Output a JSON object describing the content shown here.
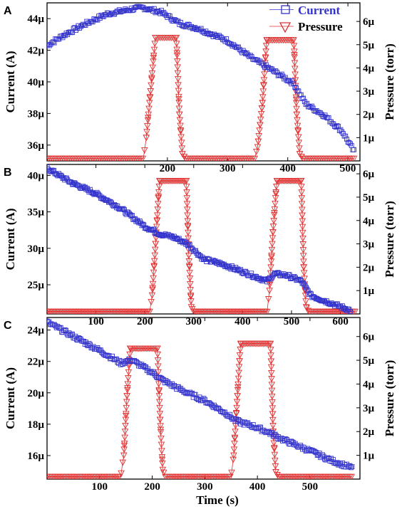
{
  "figure": {
    "x_title": "Time (s)",
    "left_title": "Current (A)",
    "right_title": "Pressure (torr)",
    "legend": [
      {
        "name": "Current",
        "color": "#3333cc",
        "marker": "square-open"
      },
      {
        "name": "Pressure",
        "color": "#e03030",
        "marker": "triangle-down-open"
      }
    ]
  },
  "chart_data": [
    {
      "type": "scatter",
      "panel_label": "A",
      "xlim": [
        0,
        520
      ],
      "ylim_left": [
        35.0,
        45.0
      ],
      "ylim_right": [
        0,
        6.8
      ],
      "x_ticks": [
        200,
        300,
        400,
        500
      ],
      "y_left_ticks": [
        36,
        38,
        40,
        42,
        44
      ],
      "y_left_labels": [
        "36µ",
        "38µ",
        "40µ",
        "42µ",
        "44µ"
      ],
      "y_right_ticks": [
        1,
        2,
        3,
        4,
        5,
        6
      ],
      "y_right_labels": [
        "1µ",
        "2µ",
        "3µ",
        "4µ",
        "5µ",
        "6µ"
      ],
      "x_hidden_tick_label": "",
      "current_series": {
        "name": "Current",
        "unit_scale": "µA",
        "points": [
          [
            0,
            42.3
          ],
          [
            30,
            43.0
          ],
          [
            60,
            43.6
          ],
          [
            100,
            44.3
          ],
          [
            140,
            44.6
          ],
          [
            160,
            44.7
          ],
          [
            190,
            44.4
          ],
          [
            220,
            43.7
          ],
          [
            250,
            43.4
          ],
          [
            300,
            42.6
          ],
          [
            340,
            41.5
          ],
          [
            380,
            40.6
          ],
          [
            410,
            39.9
          ],
          [
            430,
            38.6
          ],
          [
            460,
            37.9
          ],
          [
            490,
            36.9
          ],
          [
            510,
            35.6
          ]
        ]
      },
      "pressure_series": {
        "name": "Pressure",
        "unit_scale": "µtorr",
        "points": [
          [
            0,
            0.1
          ],
          [
            160,
            0.1
          ],
          [
            165,
            1.0
          ],
          [
            172,
            3.0
          ],
          [
            180,
            5.3
          ],
          [
            215,
            5.3
          ],
          [
            220,
            2.0
          ],
          [
            225,
            0.3
          ],
          [
            230,
            0.1
          ],
          [
            345,
            0.1
          ],
          [
            350,
            0.6
          ],
          [
            358,
            2.5
          ],
          [
            365,
            5.2
          ],
          [
            410,
            5.2
          ],
          [
            415,
            2.0
          ],
          [
            420,
            0.3
          ],
          [
            425,
            0.1
          ],
          [
            510,
            0.1
          ]
        ]
      }
    },
    {
      "type": "scatter",
      "panel_label": "B",
      "xlim": [
        0,
        640
      ],
      "ylim_left": [
        21.0,
        41.5
      ],
      "ylim_right": [
        0,
        6.4
      ],
      "x_ticks": [
        100,
        200,
        300,
        400,
        500,
        600
      ],
      "y_left_ticks": [
        25,
        30,
        35,
        40
      ],
      "y_left_labels": [
        "25µ",
        "30µ",
        "35µ",
        "40µ"
      ],
      "y_right_ticks": [
        1,
        2,
        3,
        4,
        5,
        6
      ],
      "y_right_labels": [
        "1µ",
        "2µ",
        "3µ",
        "4µ",
        "5µ",
        "6µ"
      ],
      "current_series": {
        "name": "Current",
        "unit_scale": "µA",
        "points": [
          [
            0,
            41.0
          ],
          [
            50,
            39.0
          ],
          [
            100,
            37.5
          ],
          [
            150,
            35.5
          ],
          [
            200,
            33.0
          ],
          [
            230,
            32.0
          ],
          [
            260,
            31.5
          ],
          [
            290,
            30.5
          ],
          [
            320,
            28.5
          ],
          [
            360,
            27.8
          ],
          [
            400,
            26.8
          ],
          [
            450,
            25.5
          ],
          [
            465,
            26.5
          ],
          [
            490,
            26.3
          ],
          [
            520,
            25.5
          ],
          [
            540,
            23.5
          ],
          [
            580,
            22.5
          ],
          [
            620,
            21.5
          ]
        ]
      },
      "pressure_series": {
        "name": "Pressure",
        "unit_scale": "µtorr",
        "points": [
          [
            0,
            0.1
          ],
          [
            210,
            0.1
          ],
          [
            215,
            0.8
          ],
          [
            222,
            3.0
          ],
          [
            230,
            5.7
          ],
          [
            285,
            5.7
          ],
          [
            290,
            2.5
          ],
          [
            295,
            0.3
          ],
          [
            300,
            0.1
          ],
          [
            450,
            0.1
          ],
          [
            455,
            1.0
          ],
          [
            462,
            3.5
          ],
          [
            470,
            5.7
          ],
          [
            520,
            5.7
          ],
          [
            525,
            2.0
          ],
          [
            530,
            0.3
          ],
          [
            535,
            0.1
          ],
          [
            630,
            0.1
          ]
        ]
      }
    },
    {
      "type": "scatter",
      "panel_label": "C",
      "xlim": [
        0,
        595
      ],
      "ylim_left": [
        14.5,
        24.8
      ],
      "ylim_right": [
        0,
        6.8
      ],
      "x_ticks": [
        100,
        200,
        300,
        400,
        500
      ],
      "y_left_ticks": [
        16,
        18,
        20,
        22,
        24
      ],
      "y_left_labels": [
        "16µ",
        "18µ",
        "20µ",
        "22µ",
        "24µ"
      ],
      "y_right_ticks": [
        1,
        2,
        3,
        4,
        5,
        6
      ],
      "y_right_labels": [
        "1µ",
        "2µ",
        "3µ",
        "4µ",
        "5µ",
        "6µ"
      ],
      "current_series": {
        "name": "Current",
        "unit_scale": "µA",
        "points": [
          [
            0,
            24.5
          ],
          [
            50,
            23.6
          ],
          [
            100,
            22.7
          ],
          [
            140,
            21.9
          ],
          [
            160,
            22.1
          ],
          [
            200,
            21.3
          ],
          [
            220,
            20.8
          ],
          [
            260,
            20.1
          ],
          [
            300,
            19.5
          ],
          [
            340,
            18.7
          ],
          [
            360,
            18.2
          ],
          [
            390,
            17.9
          ],
          [
            420,
            17.5
          ],
          [
            450,
            17.0
          ],
          [
            500,
            16.3
          ],
          [
            540,
            15.7
          ],
          [
            580,
            15.2
          ]
        ]
      },
      "pressure_series": {
        "name": "Pressure",
        "unit_scale": "µtorr",
        "points": [
          [
            0,
            0.1
          ],
          [
            140,
            0.1
          ],
          [
            146,
            1.0
          ],
          [
            152,
            3.5
          ],
          [
            158,
            5.5
          ],
          [
            210,
            5.5
          ],
          [
            215,
            2.5
          ],
          [
            220,
            0.4
          ],
          [
            225,
            0.1
          ],
          [
            350,
            0.1
          ],
          [
            355,
            1.0
          ],
          [
            362,
            3.5
          ],
          [
            368,
            5.7
          ],
          [
            425,
            5.7
          ],
          [
            430,
            2.0
          ],
          [
            435,
            0.3
          ],
          [
            440,
            0.1
          ],
          [
            580,
            0.1
          ]
        ]
      }
    }
  ]
}
